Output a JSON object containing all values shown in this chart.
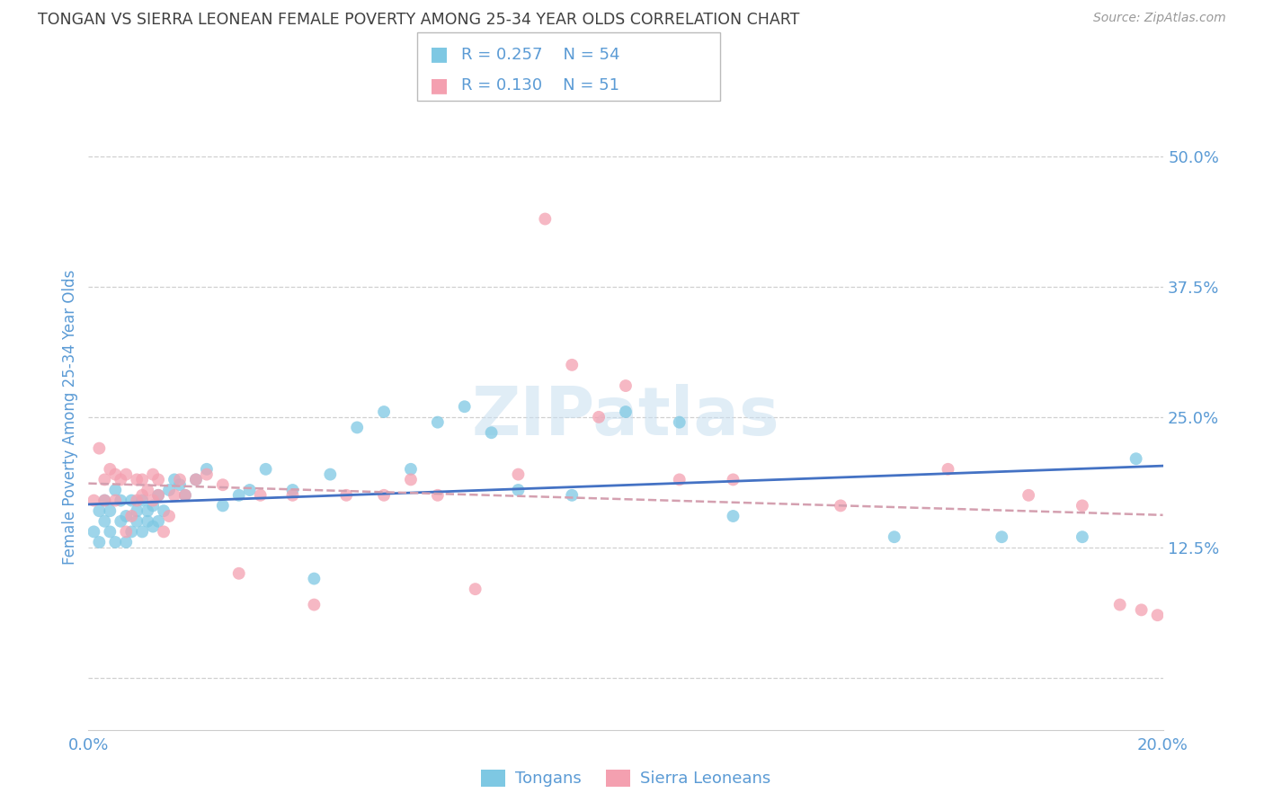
{
  "title": "TONGAN VS SIERRA LEONEAN FEMALE POVERTY AMONG 25-34 YEAR OLDS CORRELATION CHART",
  "source": "Source: ZipAtlas.com",
  "ylabel": "Female Poverty Among 25-34 Year Olds",
  "xlim": [
    0.0,
    0.2
  ],
  "ylim": [
    -0.05,
    0.55
  ],
  "ytick_values": [
    0.0,
    0.125,
    0.25,
    0.375,
    0.5
  ],
  "ytick_labels": [
    "",
    "12.5%",
    "25.0%",
    "37.5%",
    "50.0%"
  ],
  "grid_color": "#d0d0d0",
  "background_color": "#ffffff",
  "tongan_color": "#7ec8e3",
  "sierra_leonean_color": "#f4a0b0",
  "trendline_tongan_color": "#4472c4",
  "trendline_sierra_color": "#d4a0b0",
  "legend_R_tongan": "R = 0.257",
  "legend_N_tongan": "N = 54",
  "legend_R_sierra": "R = 0.130",
  "legend_N_sierra": "N = 51",
  "title_color": "#404040",
  "axis_label_color": "#5b9bd5",
  "tick_color": "#5b9bd5",
  "tongan_x": [
    0.001,
    0.002,
    0.002,
    0.003,
    0.003,
    0.004,
    0.004,
    0.005,
    0.005,
    0.006,
    0.006,
    0.007,
    0.007,
    0.008,
    0.008,
    0.009,
    0.009,
    0.01,
    0.01,
    0.011,
    0.011,
    0.012,
    0.012,
    0.013,
    0.013,
    0.014,
    0.015,
    0.016,
    0.017,
    0.018,
    0.02,
    0.022,
    0.025,
    0.028,
    0.03,
    0.033,
    0.038,
    0.042,
    0.045,
    0.05,
    0.055,
    0.06,
    0.065,
    0.07,
    0.075,
    0.08,
    0.09,
    0.1,
    0.11,
    0.12,
    0.15,
    0.17,
    0.185,
    0.195
  ],
  "tongan_y": [
    0.14,
    0.16,
    0.13,
    0.15,
    0.17,
    0.14,
    0.16,
    0.18,
    0.13,
    0.15,
    0.17,
    0.13,
    0.155,
    0.14,
    0.17,
    0.15,
    0.16,
    0.14,
    0.17,
    0.15,
    0.16,
    0.145,
    0.165,
    0.15,
    0.175,
    0.16,
    0.18,
    0.19,
    0.185,
    0.175,
    0.19,
    0.2,
    0.165,
    0.175,
    0.18,
    0.2,
    0.18,
    0.095,
    0.195,
    0.24,
    0.255,
    0.2,
    0.245,
    0.26,
    0.235,
    0.18,
    0.175,
    0.255,
    0.245,
    0.155,
    0.135,
    0.135,
    0.135,
    0.21
  ],
  "sierra_x": [
    0.001,
    0.002,
    0.003,
    0.003,
    0.004,
    0.005,
    0.005,
    0.006,
    0.007,
    0.007,
    0.008,
    0.009,
    0.009,
    0.01,
    0.01,
    0.011,
    0.012,
    0.012,
    0.013,
    0.013,
    0.014,
    0.015,
    0.016,
    0.017,
    0.018,
    0.02,
    0.022,
    0.025,
    0.028,
    0.032,
    0.038,
    0.042,
    0.048,
    0.055,
    0.06,
    0.065,
    0.072,
    0.08,
    0.085,
    0.09,
    0.095,
    0.1,
    0.11,
    0.12,
    0.14,
    0.16,
    0.175,
    0.185,
    0.192,
    0.196,
    0.199
  ],
  "sierra_y": [
    0.17,
    0.22,
    0.19,
    0.17,
    0.2,
    0.195,
    0.17,
    0.19,
    0.195,
    0.14,
    0.155,
    0.17,
    0.19,
    0.175,
    0.19,
    0.18,
    0.17,
    0.195,
    0.175,
    0.19,
    0.14,
    0.155,
    0.175,
    0.19,
    0.175,
    0.19,
    0.195,
    0.185,
    0.1,
    0.175,
    0.175,
    0.07,
    0.175,
    0.175,
    0.19,
    0.175,
    0.085,
    0.195,
    0.44,
    0.3,
    0.25,
    0.28,
    0.19,
    0.19,
    0.165,
    0.2,
    0.175,
    0.165,
    0.07,
    0.065,
    0.06
  ]
}
